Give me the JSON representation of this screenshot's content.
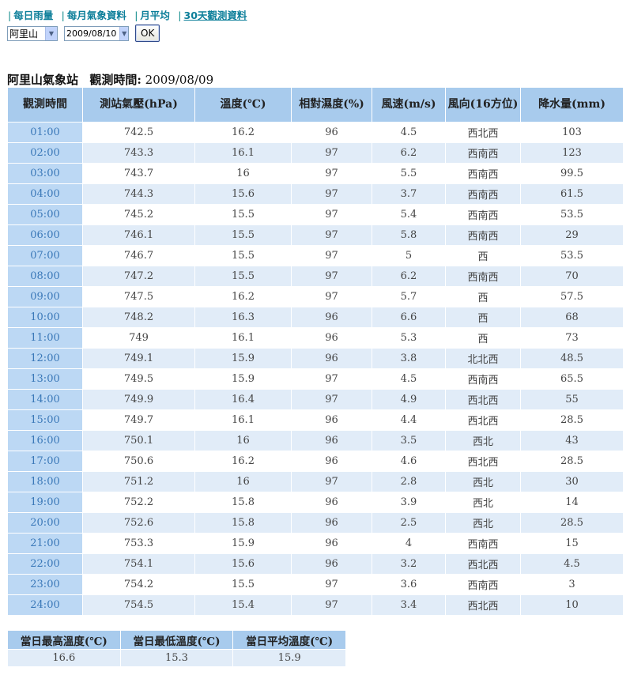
{
  "nav": {
    "items": [
      {
        "label": "每日雨量",
        "active": false
      },
      {
        "label": "每月氣象資料",
        "active": false
      },
      {
        "label": "月平均",
        "active": false
      },
      {
        "label": "30天觀測資料",
        "active": true
      }
    ]
  },
  "controls": {
    "station_value": "阿里山",
    "date_value": "2009/08/10",
    "ok_label": "OK"
  },
  "title": {
    "station": "阿里山氣象站",
    "time_label": "觀測時間:",
    "date": "2009/08/09"
  },
  "table": {
    "headers": [
      "觀測時間",
      "測站氣壓(hPa)",
      "溫度(℃)",
      "相對濕度(%)",
      "風速(m/s)",
      "風向(16方位)",
      "降水量(mm)"
    ],
    "rows": [
      [
        "01:00",
        "742.5",
        "16.2",
        "96",
        "4.5",
        "西北西",
        "103"
      ],
      [
        "02:00",
        "743.3",
        "16.1",
        "97",
        "6.2",
        "西南西",
        "123"
      ],
      [
        "03:00",
        "743.7",
        "16",
        "97",
        "5.5",
        "西南西",
        "99.5"
      ],
      [
        "04:00",
        "744.3",
        "15.6",
        "97",
        "3.7",
        "西南西",
        "61.5"
      ],
      [
        "05:00",
        "745.2",
        "15.5",
        "97",
        "5.4",
        "西南西",
        "53.5"
      ],
      [
        "06:00",
        "746.1",
        "15.5",
        "97",
        "5.8",
        "西南西",
        "29"
      ],
      [
        "07:00",
        "746.7",
        "15.5",
        "97",
        "5",
        "西",
        "53.5"
      ],
      [
        "08:00",
        "747.2",
        "15.5",
        "97",
        "6.2",
        "西南西",
        "70"
      ],
      [
        "09:00",
        "747.5",
        "16.2",
        "97",
        "5.7",
        "西",
        "57.5"
      ],
      [
        "10:00",
        "748.2",
        "16.3",
        "96",
        "6.6",
        "西",
        "68"
      ],
      [
        "11:00",
        "749",
        "16.1",
        "96",
        "5.3",
        "西",
        "73"
      ],
      [
        "12:00",
        "749.1",
        "15.9",
        "96",
        "3.8",
        "北北西",
        "48.5"
      ],
      [
        "13:00",
        "749.5",
        "15.9",
        "97",
        "4.5",
        "西南西",
        "65.5"
      ],
      [
        "14:00",
        "749.9",
        "16.4",
        "97",
        "4.9",
        "西北西",
        "55"
      ],
      [
        "15:00",
        "749.7",
        "16.1",
        "96",
        "4.4",
        "西北西",
        "28.5"
      ],
      [
        "16:00",
        "750.1",
        "16",
        "96",
        "3.5",
        "西北",
        "43"
      ],
      [
        "17:00",
        "750.6",
        "16.2",
        "96",
        "4.6",
        "西北西",
        "28.5"
      ],
      [
        "18:00",
        "751.2",
        "16",
        "97",
        "2.8",
        "西北",
        "30"
      ],
      [
        "19:00",
        "752.2",
        "15.8",
        "96",
        "3.9",
        "西北",
        "14"
      ],
      [
        "20:00",
        "752.6",
        "15.8",
        "96",
        "2.5",
        "西北",
        "28.5"
      ],
      [
        "21:00",
        "753.3",
        "15.9",
        "96",
        "4",
        "西南西",
        "15"
      ],
      [
        "22:00",
        "754.1",
        "15.6",
        "96",
        "3.2",
        "西北西",
        "4.5"
      ],
      [
        "23:00",
        "754.2",
        "15.5",
        "97",
        "3.6",
        "西南西",
        "3"
      ],
      [
        "24:00",
        "754.5",
        "15.4",
        "97",
        "3.4",
        "西北西",
        "10"
      ]
    ]
  },
  "summary": {
    "headers": [
      "當日最高溫度(℃)",
      "當日最低溫度(℃)",
      "當日平均溫度(℃)"
    ],
    "values": [
      "16.6",
      "15.3",
      "15.9"
    ]
  }
}
